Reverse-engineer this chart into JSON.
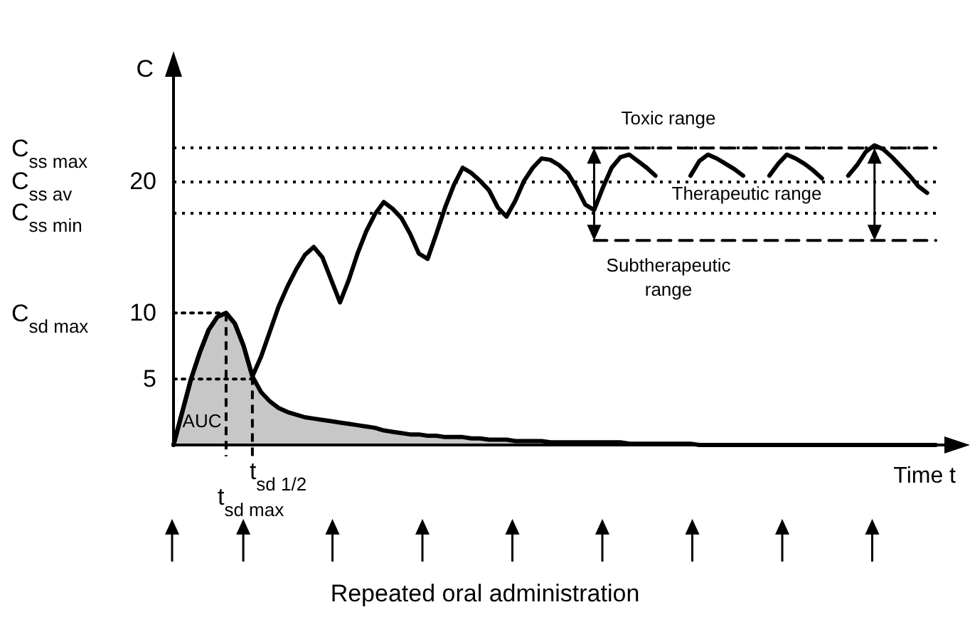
{
  "chart_data": {
    "type": "line",
    "ylabel": "C",
    "xlabel": "Time t",
    "ylim": [
      0,
      29.4
    ],
    "tick_labels": "y",
    "categories": [
      null,
      null,
      null,
      null,
      null,
      null,
      null,
      null,
      null,
      null,
      null,
      null,
      null,
      null,
      null,
      null,
      null,
      null,
      null,
      null,
      null,
      null,
      null,
      null,
      null,
      null,
      null,
      null,
      null,
      null,
      null,
      null,
      null,
      null,
      null,
      null,
      null,
      null,
      null,
      null,
      null,
      null,
      null,
      null,
      null,
      null,
      null,
      null,
      null,
      null,
      null,
      null,
      null,
      null,
      null,
      null,
      null,
      null,
      null,
      null,
      null,
      null,
      null,
      null,
      null,
      null,
      null,
      null,
      null,
      null,
      null,
      null,
      null,
      null,
      null,
      null,
      null,
      null,
      null,
      null,
      null,
      null,
      null,
      null,
      null,
      null,
      null,
      null
    ],
    "yticks": [
      5,
      10,
      20
    ],
    "ref_lines": [
      {
        "axis": "y",
        "value": 22.5,
        "line_style": "dotted",
        "color": "#000000"
      },
      {
        "axis": "y",
        "value": 20,
        "line_style": "dotted",
        "color": "#000000"
      },
      {
        "axis": "y",
        "value": 17.6,
        "line_style": "dotted",
        "color": "#000000"
      }
    ],
    "series": [
      {
        "type": "area",
        "color": "#000000",
        "line_style": "solid",
        "values": [
          0,
          2.5,
          5,
          7,
          8.7,
          9.7,
          10,
          9.2,
          7.5,
          5.2,
          4,
          3.3,
          2.8,
          2.5,
          2.3,
          2.1,
          2.0,
          1.9,
          1.8,
          1.7,
          1.6,
          1.5,
          1.4,
          1.3,
          1.1,
          1.0,
          0.9,
          0.8,
          0.8,
          0.7,
          0.7,
          0.6,
          0.6,
          0.6,
          0.5,
          0.5,
          0.4,
          0.4,
          0.4,
          0.3,
          0.3,
          0.3,
          0.3,
          0.2,
          0.2,
          0.2,
          0.2,
          0.2,
          0.2,
          0.2,
          0.2,
          0.2,
          0.1,
          0.1,
          0.1,
          0.1,
          0.1,
          0.1,
          0.1,
          0.1,
          0,
          0,
          0,
          0,
          0,
          0,
          0,
          0,
          0,
          0,
          0,
          0,
          0,
          0,
          0,
          0,
          0,
          0,
          0,
          0,
          0,
          0,
          0,
          0,
          0,
          0,
          0,
          0
        ]
      },
      {
        "color": "#000000",
        "line_style": "solid",
        "values": [
          0,
          2.5,
          5,
          7,
          8.7,
          9.7,
          10,
          9.2,
          7.5,
          5.2,
          6.7,
          8.6,
          10.5,
          12,
          13.3,
          14.4,
          15,
          14.2,
          12.5,
          10.8,
          12.5,
          14.5,
          16.2,
          17.5,
          18.4,
          17.9,
          17.2,
          16,
          14.5,
          14.1,
          16,
          18,
          19.7,
          21,
          20.6,
          20,
          19.3,
          18,
          17.3,
          18.5,
          20,
          21,
          21.7,
          21.6,
          21.2,
          20.6,
          19.5,
          18.2,
          17.8,
          19.5,
          21,
          21.8,
          22,
          21.5,
          21,
          20.4,
          null,
          null,
          null,
          20.4,
          21.5,
          22,
          21.7,
          21.3,
          20.9,
          20.4,
          null,
          null,
          20.4,
          21.3,
          22,
          21.7,
          21.3,
          20.8,
          20.2,
          null,
          null,
          20.4,
          21.2,
          22.2,
          22.7,
          22.4,
          21.8,
          21.1,
          20.4,
          19.6,
          19.1,
          null
        ]
      },
      {
        "color": "#000000",
        "line_style": "dotted",
        "values": [
          10,
          10,
          10,
          10,
          10,
          10,
          10,
          null,
          null,
          null,
          null,
          null,
          null,
          null,
          null,
          null,
          null,
          null,
          null,
          null,
          null,
          null,
          null,
          null,
          null,
          null,
          null,
          null,
          null,
          null,
          null,
          null,
          null,
          null,
          null,
          null,
          null,
          null,
          null,
          null,
          null,
          null,
          null,
          null,
          null,
          null,
          null,
          null,
          null,
          null,
          null,
          null,
          null,
          null,
          null,
          null,
          null,
          null,
          null,
          null,
          null,
          null,
          null,
          null,
          null,
          null,
          null,
          null,
          null,
          null,
          null,
          null,
          null,
          null,
          null,
          null,
          null,
          null,
          null,
          null,
          null,
          null,
          null,
          null,
          null,
          null,
          null,
          null
        ]
      },
      {
        "color": "#000000",
        "line_style": "dotted",
        "values": [
          5,
          5,
          5,
          5,
          5,
          5,
          5,
          5,
          5,
          5,
          null,
          null,
          null,
          null,
          null,
          null,
          null,
          null,
          null,
          null,
          null,
          null,
          null,
          null,
          null,
          null,
          null,
          null,
          null,
          null,
          null,
          null,
          null,
          null,
          null,
          null,
          null,
          null,
          null,
          null,
          null,
          null,
          null,
          null,
          null,
          null,
          null,
          null,
          null,
          null,
          null,
          null,
          null,
          null,
          null,
          null,
          null,
          null,
          null,
          null,
          null,
          null,
          null,
          null,
          null,
          null,
          null,
          null,
          null,
          null,
          null,
          null,
          null,
          null,
          null,
          null,
          null,
          null,
          null,
          null,
          null,
          null,
          null,
          null,
          null,
          null,
          null,
          null
        ]
      },
      {
        "color": "#000000",
        "line_style": "dashed",
        "values": [
          null,
          null,
          null,
          null,
          null,
          null,
          null,
          null,
          null,
          null,
          null,
          null,
          null,
          null,
          null,
          null,
          null,
          null,
          null,
          null,
          null,
          null,
          null,
          null,
          null,
          null,
          null,
          null,
          null,
          null,
          null,
          null,
          null,
          null,
          null,
          null,
          null,
          null,
          null,
          null,
          null,
          null,
          null,
          null,
          null,
          null,
          null,
          null,
          22.5,
          22.5,
          22.5,
          22.5,
          22.5,
          22.5,
          22.5,
          22.5,
          22.5,
          22.5,
          22.5,
          22.5,
          22.5,
          22.5,
          22.5,
          22.5,
          22.5,
          22.5,
          22.5,
          22.5,
          22.5,
          22.5,
          22.5,
          22.5,
          22.5,
          22.5,
          22.5,
          22.5,
          22.5,
          22.5,
          22.5,
          22.5,
          22.5,
          22.5,
          22.5,
          22.5,
          22.5,
          22.5,
          22.5,
          22.5
        ]
      },
      {
        "color": "#000000",
        "line_style": "dashed",
        "values": [
          null,
          null,
          null,
          null,
          null,
          null,
          null,
          null,
          null,
          null,
          null,
          null,
          null,
          null,
          null,
          null,
          null,
          null,
          null,
          null,
          null,
          null,
          null,
          null,
          null,
          null,
          null,
          null,
          null,
          null,
          null,
          null,
          null,
          null,
          null,
          null,
          null,
          null,
          null,
          null,
          null,
          null,
          null,
          null,
          null,
          null,
          null,
          null,
          15.5,
          15.5,
          15.5,
          15.5,
          15.5,
          15.5,
          15.5,
          15.5,
          15.5,
          15.5,
          15.5,
          15.5,
          15.5,
          15.5,
          15.5,
          15.5,
          15.5,
          15.5,
          15.5,
          15.5,
          15.5,
          15.5,
          15.5,
          15.5,
          15.5,
          15.5,
          15.5,
          15.5,
          15.5,
          15.5,
          15.5,
          15.5,
          15.5,
          15.5,
          15.5,
          15.5,
          15.5,
          15.5,
          15.5,
          15.5
        ]
      }
    ],
    "annotations": [
      "C$_{ss max}$",
      "C$_{ss av}$",
      "C$_{ss min}$",
      "C$_{sd max}$",
      "Toxic range",
      "Therapeutic range",
      "Subtherapeutic\nrange",
      "AUC",
      "t$_{sd max}$",
      "t$_{sd 1/2}$",
      "Repeated oral administration"
    ]
  }
}
